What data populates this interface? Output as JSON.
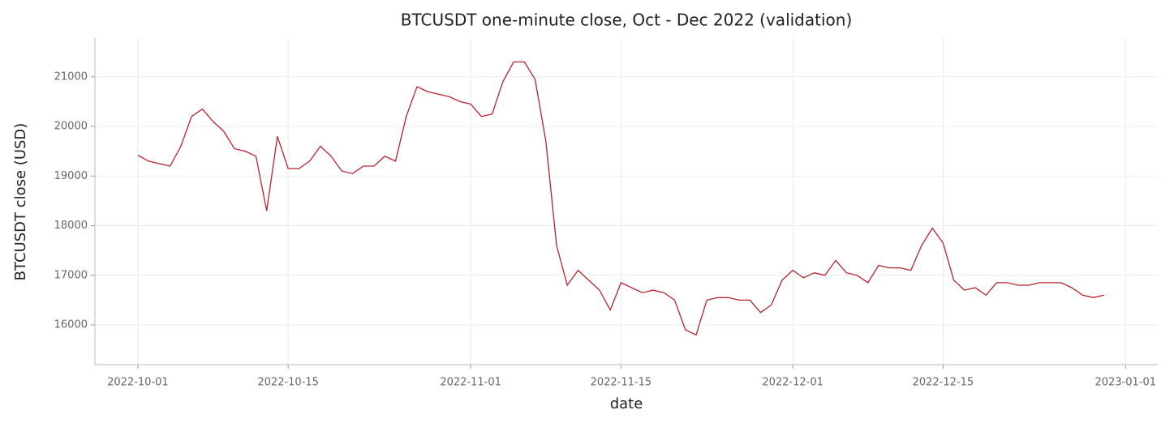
{
  "chart_data": {
    "type": "line",
    "title": "BTCUSDT one-minute close, Oct - Dec 2022 (validation)",
    "xlabel": "date",
    "ylabel": "BTCUSDT close (USD)",
    "x": [
      "2022-10-01",
      "2022-10-02",
      "2022-10-03",
      "2022-10-04",
      "2022-10-05",
      "2022-10-06",
      "2022-10-07",
      "2022-10-08",
      "2022-10-09",
      "2022-10-10",
      "2022-10-11",
      "2022-10-12",
      "2022-10-13",
      "2022-10-14",
      "2022-10-15",
      "2022-10-16",
      "2022-10-17",
      "2022-10-18",
      "2022-10-19",
      "2022-10-20",
      "2022-10-21",
      "2022-10-22",
      "2022-10-23",
      "2022-10-24",
      "2022-10-25",
      "2022-10-26",
      "2022-10-27",
      "2022-10-28",
      "2022-10-29",
      "2022-10-30",
      "2022-10-31",
      "2022-11-01",
      "2022-11-02",
      "2022-11-03",
      "2022-11-04",
      "2022-11-05",
      "2022-11-06",
      "2022-11-07",
      "2022-11-08",
      "2022-11-09",
      "2022-11-10",
      "2022-11-11",
      "2022-11-12",
      "2022-11-13",
      "2022-11-14",
      "2022-11-15",
      "2022-11-16",
      "2022-11-17",
      "2022-11-18",
      "2022-11-19",
      "2022-11-20",
      "2022-11-21",
      "2022-11-22",
      "2022-11-23",
      "2022-11-24",
      "2022-11-25",
      "2022-11-26",
      "2022-11-27",
      "2022-11-28",
      "2022-11-29",
      "2022-11-30",
      "2022-12-01",
      "2022-12-02",
      "2022-12-03",
      "2022-12-04",
      "2022-12-05",
      "2022-12-06",
      "2022-12-07",
      "2022-12-08",
      "2022-12-09",
      "2022-12-10",
      "2022-12-11",
      "2022-12-12",
      "2022-12-13",
      "2022-12-14",
      "2022-12-15",
      "2022-12-16",
      "2022-12-17",
      "2022-12-18",
      "2022-12-19",
      "2022-12-20",
      "2022-12-21",
      "2022-12-22",
      "2022-12-23",
      "2022-12-24",
      "2022-12-25",
      "2022-12-26",
      "2022-12-27",
      "2022-12-28",
      "2022-12-29",
      "2022-12-30"
    ],
    "series": [
      {
        "name": "BTCUSDT close",
        "color": "#b5232e",
        "values": [
          19420,
          19300,
          19250,
          19200,
          19600,
          20200,
          20350,
          20100,
          19900,
          19550,
          19500,
          19400,
          18300,
          19800,
          19150,
          19150,
          19300,
          19600,
          19400,
          19100,
          19050,
          19200,
          19200,
          19400,
          19300,
          20200,
          20800,
          20700,
          20650,
          20600,
          20500,
          20450,
          20200,
          20250,
          20900,
          21300,
          21300,
          20950,
          19700,
          17600,
          16800,
          17100,
          16900,
          16700,
          16300,
          16850,
          16750,
          16650,
          16700,
          16650,
          16500,
          15900,
          15800,
          16500,
          16550,
          16550,
          16500,
          16500,
          16250,
          16400,
          16900,
          17100,
          16950,
          17050,
          17000,
          17300,
          17050,
          17000,
          16850,
          17200,
          17150,
          17150,
          17100,
          17600,
          17950,
          17650,
          16900,
          16700,
          16750,
          16600,
          16850,
          16850,
          16800,
          16800,
          16850,
          16850,
          16850,
          16750,
          16600,
          16550,
          16600
        ]
      }
    ],
    "xlim": [
      "2022-09-27",
      "2023-01-04"
    ],
    "xticks": [
      "2022-10-01",
      "2022-10-15",
      "2022-11-01",
      "2022-11-15",
      "2022-12-01",
      "2022-12-15",
      "2023-01-01"
    ],
    "ylim": [
      15200,
      21780
    ],
    "yticks": [
      16000,
      17000,
      18000,
      19000,
      20000,
      21000
    ],
    "grid": true
  }
}
